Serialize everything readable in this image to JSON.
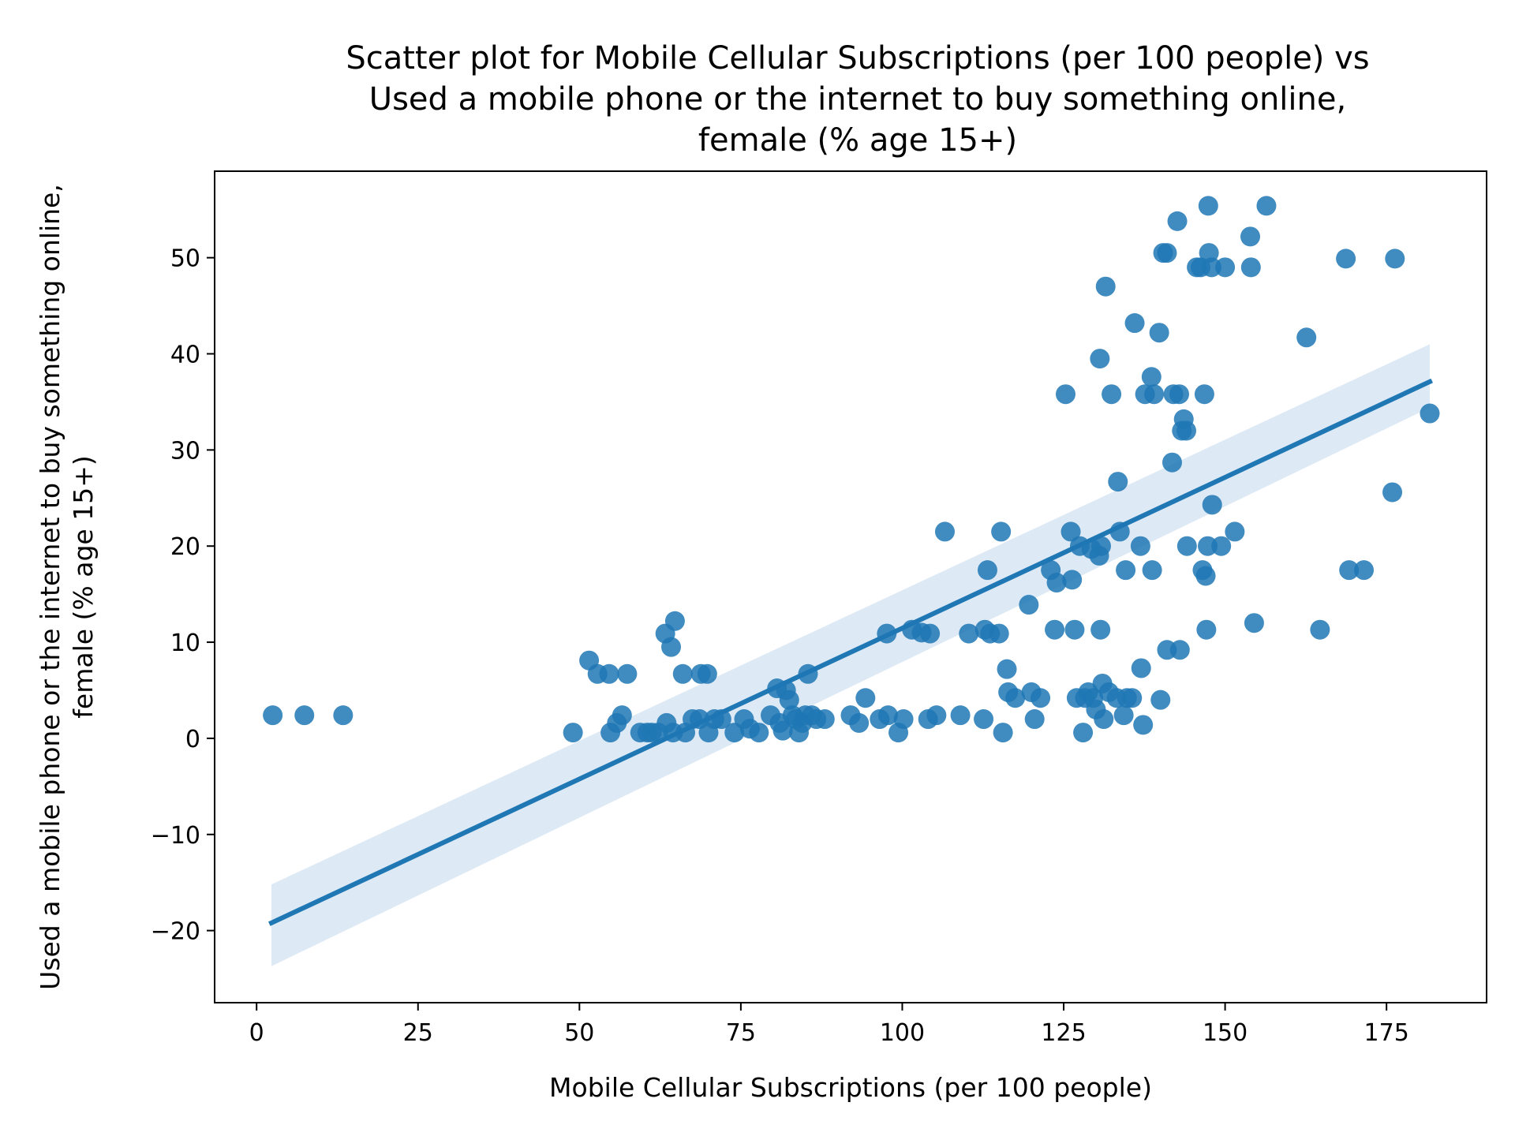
{
  "chart_data": {
    "type": "scatter",
    "title_lines": [
      "Scatter plot for Mobile Cellular Subscriptions (per 100 people) vs",
      "Used a mobile phone or the internet to buy something online,",
      "female (% age 15+)"
    ],
    "xlabel": "Mobile Cellular Subscriptions (per 100 people)",
    "ylabel_lines": [
      "Used a mobile phone or the internet to buy something online,",
      "female (% age 15+)"
    ],
    "xlim": [
      -6.5,
      190.5
    ],
    "ylim": [
      -27.5,
      59
    ],
    "x_ticks": [
      0,
      25,
      50,
      75,
      100,
      125,
      150,
      175
    ],
    "x_tick_labels": [
      "0",
      "25",
      "50",
      "75",
      "100",
      "125",
      "150",
      "175"
    ],
    "y_ticks": [
      -20,
      -10,
      0,
      10,
      20,
      30,
      40,
      50
    ],
    "y_tick_labels": [
      "−20",
      "−10",
      "0",
      "10",
      "20",
      "30",
      "40",
      "50"
    ],
    "grid": false,
    "colors": {
      "points": "#1f77b4",
      "regression_line": "#1f77b4",
      "confidence_band": "#c6dbef"
    },
    "regression": {
      "x_range": [
        2.3,
        181.7
      ],
      "y_range": [
        -19.2,
        37.1
      ],
      "ci_lower": [
        -23.7,
        34.4
      ],
      "ci_upper": [
        -15.2,
        41.0
      ]
    },
    "points": [
      [
        2.5,
        2.4
      ],
      [
        7.4,
        2.4
      ],
      [
        13.4,
        2.4
      ],
      [
        49.0,
        0.6
      ],
      [
        51.5,
        8.1
      ],
      [
        52.8,
        6.7
      ],
      [
        54.6,
        6.7
      ],
      [
        54.8,
        0.6
      ],
      [
        55.8,
        1.6
      ],
      [
        56.6,
        2.4
      ],
      [
        57.4,
        6.7
      ],
      [
        59.4,
        0.6
      ],
      [
        60.5,
        0.6
      ],
      [
        61.2,
        0.6
      ],
      [
        62.2,
        0.6
      ],
      [
        63.3,
        10.9
      ],
      [
        63.5,
        1.6
      ],
      [
        64.2,
        9.5
      ],
      [
        64.5,
        0.6
      ],
      [
        64.8,
        12.2
      ],
      [
        66.0,
        6.7
      ],
      [
        66.4,
        0.6
      ],
      [
        67.5,
        2.0
      ],
      [
        68.6,
        2.0
      ],
      [
        68.8,
        6.7
      ],
      [
        69.8,
        6.7
      ],
      [
        70.0,
        0.6
      ],
      [
        70.9,
        2.0
      ],
      [
        72.0,
        2.0
      ],
      [
        74.0,
        0.6
      ],
      [
        75.5,
        2.0
      ],
      [
        76.4,
        1.0
      ],
      [
        77.8,
        0.6
      ],
      [
        79.6,
        2.4
      ],
      [
        80.6,
        5.2
      ],
      [
        81.0,
        1.6
      ],
      [
        81.5,
        0.8
      ],
      [
        82.0,
        5.0
      ],
      [
        82.5,
        4.0
      ],
      [
        83.0,
        2.4
      ],
      [
        83.5,
        2.0
      ],
      [
        84.0,
        0.6
      ],
      [
        84.5,
        1.6
      ],
      [
        85.0,
        2.4
      ],
      [
        85.4,
        6.7
      ],
      [
        86.0,
        2.4
      ],
      [
        86.7,
        2.0
      ],
      [
        88.0,
        2.0
      ],
      [
        92.0,
        2.4
      ],
      [
        93.3,
        1.6
      ],
      [
        94.3,
        4.2
      ],
      [
        96.5,
        2.0
      ],
      [
        97.6,
        10.9
      ],
      [
        97.8,
        2.4
      ],
      [
        99.4,
        0.6
      ],
      [
        100.2,
        2.0
      ],
      [
        101.5,
        11.3
      ],
      [
        103.0,
        11.0
      ],
      [
        104.3,
        10.9
      ],
      [
        104.0,
        2.0
      ],
      [
        105.3,
        2.4
      ],
      [
        106.6,
        21.5
      ],
      [
        109.0,
        2.4
      ],
      [
        110.3,
        10.9
      ],
      [
        112.6,
        2.0
      ],
      [
        112.8,
        11.3
      ],
      [
        113.2,
        17.5
      ],
      [
        113.6,
        10.9
      ],
      [
        115.0,
        10.9
      ],
      [
        115.3,
        21.5
      ],
      [
        115.6,
        0.6
      ],
      [
        116.2,
        7.2
      ],
      [
        116.4,
        4.8
      ],
      [
        117.5,
        4.2
      ],
      [
        119.6,
        13.9
      ],
      [
        120.0,
        4.8
      ],
      [
        120.5,
        2.0
      ],
      [
        121.4,
        4.2
      ],
      [
        123.0,
        17.5
      ],
      [
        123.6,
        11.3
      ],
      [
        123.9,
        16.2
      ],
      [
        125.3,
        35.8
      ],
      [
        126.1,
        21.5
      ],
      [
        126.3,
        16.5
      ],
      [
        126.7,
        11.3
      ],
      [
        127.0,
        4.2
      ],
      [
        127.5,
        20.0
      ],
      [
        128.0,
        0.6
      ],
      [
        128.3,
        4.2
      ],
      [
        128.8,
        4.8
      ],
      [
        129.3,
        19.7
      ],
      [
        129.6,
        4.2
      ],
      [
        130.0,
        3.0
      ],
      [
        130.5,
        19.0
      ],
      [
        130.6,
        39.5
      ],
      [
        130.7,
        11.3
      ],
      [
        130.8,
        20.0
      ],
      [
        131.0,
        5.7
      ],
      [
        131.2,
        2.0
      ],
      [
        131.5,
        47.0
      ],
      [
        132.0,
        4.8
      ],
      [
        132.4,
        35.8
      ],
      [
        133.2,
        4.2
      ],
      [
        133.4,
        26.7
      ],
      [
        133.7,
        21.5
      ],
      [
        134.3,
        2.4
      ],
      [
        134.6,
        17.5
      ],
      [
        134.8,
        4.2
      ],
      [
        135.6,
        4.2
      ],
      [
        136.0,
        43.2
      ],
      [
        136.9,
        20.0
      ],
      [
        137.0,
        7.3
      ],
      [
        137.3,
        1.4
      ],
      [
        137.6,
        35.8
      ],
      [
        138.6,
        37.6
      ],
      [
        138.7,
        17.5
      ],
      [
        139.0,
        35.8
      ],
      [
        139.8,
        42.2
      ],
      [
        140.0,
        4.0
      ],
      [
        140.4,
        50.5
      ],
      [
        141.0,
        50.5
      ],
      [
        141.0,
        9.2
      ],
      [
        141.8,
        28.7
      ],
      [
        142.0,
        35.8
      ],
      [
        142.6,
        53.8
      ],
      [
        142.9,
        35.8
      ],
      [
        143.0,
        9.2
      ],
      [
        143.3,
        32.0
      ],
      [
        143.6,
        33.2
      ],
      [
        144.0,
        32.0
      ],
      [
        144.1,
        20.0
      ],
      [
        145.6,
        49.0
      ],
      [
        146.2,
        49.0
      ],
      [
        146.5,
        17.5
      ],
      [
        146.8,
        35.8
      ],
      [
        147.0,
        16.9
      ],
      [
        147.1,
        11.3
      ],
      [
        147.3,
        20.0
      ],
      [
        147.4,
        55.4
      ],
      [
        147.5,
        50.5
      ],
      [
        147.9,
        49.0
      ],
      [
        148.0,
        24.3
      ],
      [
        149.4,
        20.0
      ],
      [
        150.0,
        49.0
      ],
      [
        151.5,
        21.5
      ],
      [
        153.9,
        52.2
      ],
      [
        154.0,
        49.0
      ],
      [
        154.5,
        12.0
      ],
      [
        156.4,
        55.4
      ],
      [
        162.6,
        41.7
      ],
      [
        164.7,
        11.3
      ],
      [
        168.7,
        49.9
      ],
      [
        169.2,
        17.5
      ],
      [
        171.5,
        17.5
      ],
      [
        175.9,
        25.6
      ],
      [
        176.3,
        49.9
      ],
      [
        181.7,
        33.8
      ]
    ]
  }
}
